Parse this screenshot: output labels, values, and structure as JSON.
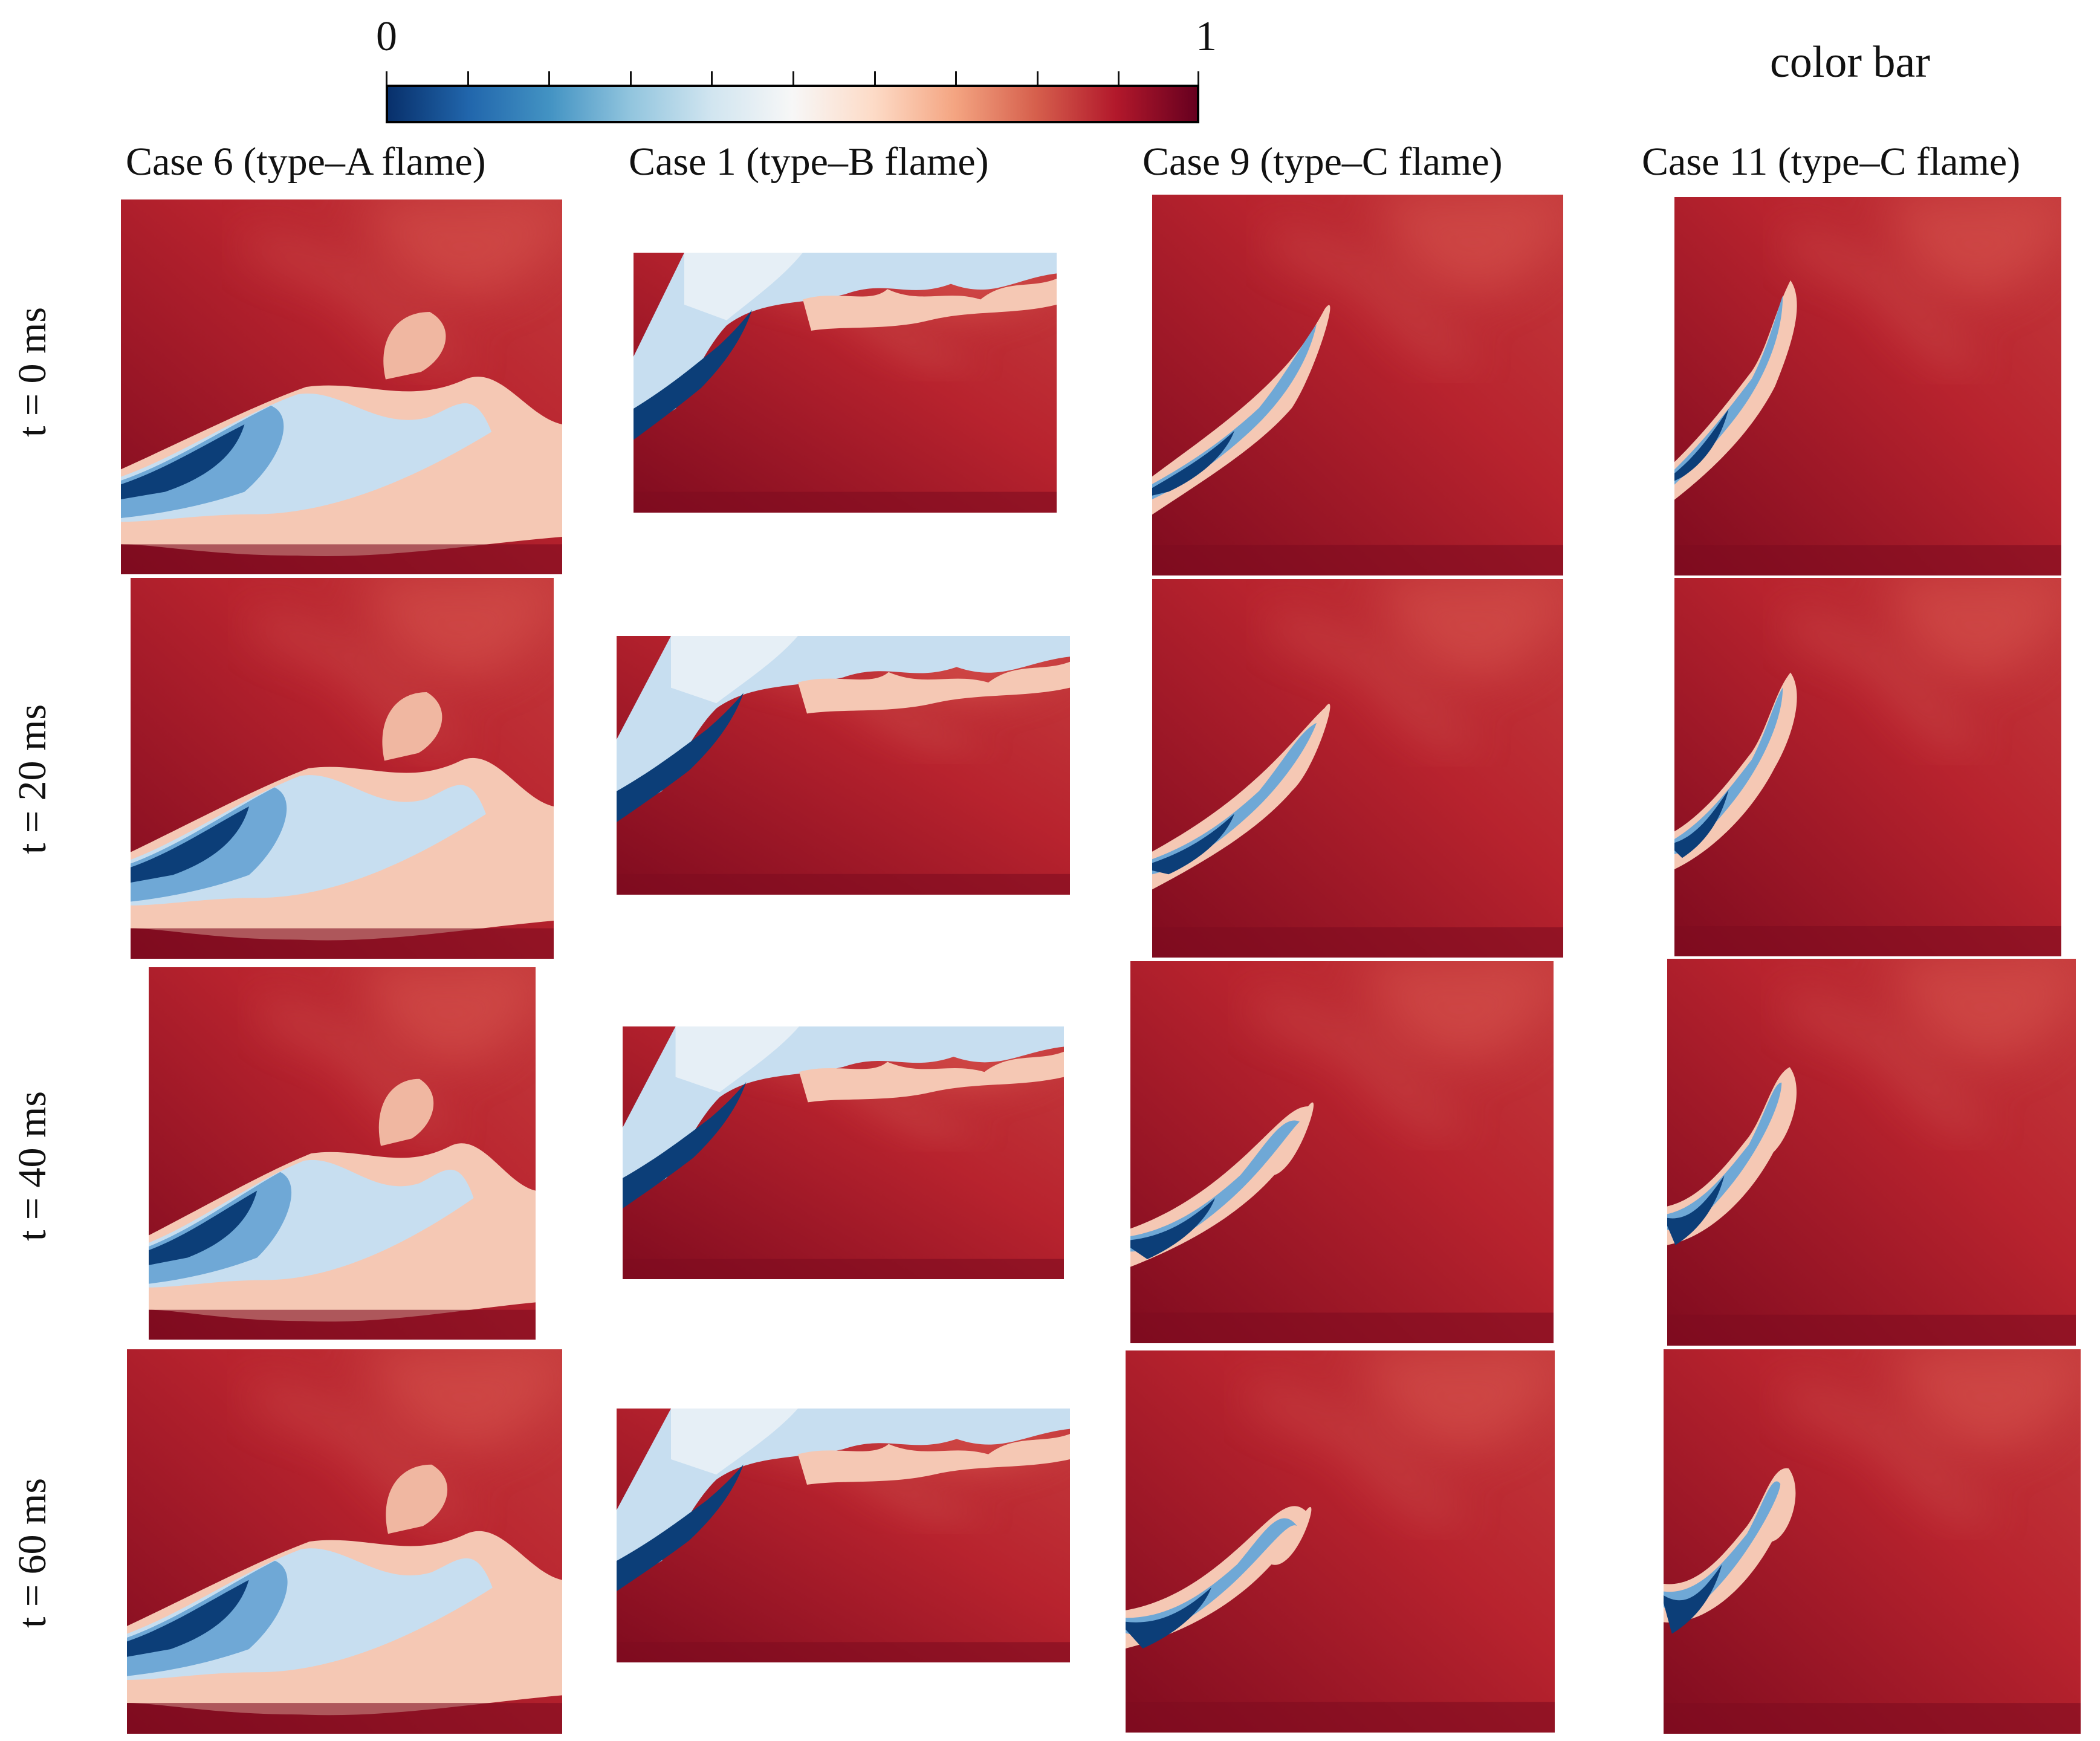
{
  "colorbar": {
    "min_label": "0",
    "max_label": "1",
    "title": "color bar",
    "colors": [
      "#08306b",
      "#2166ac",
      "#4393c3",
      "#92c5de",
      "#d1e5f0",
      "#f7f7f7",
      "#fddbc7",
      "#f4a582",
      "#d6604d",
      "#b2182b",
      "#67001f"
    ]
  },
  "columns": [
    {
      "title": "Case 6 (type–A flame)"
    },
    {
      "title": "Case 1 (type–B flame)"
    },
    {
      "title": "Case 9 (type–C flame)"
    },
    {
      "title": "Case 11 (type–C flame)"
    }
  ],
  "rows": [
    {
      "label": "t = 0 ms"
    },
    {
      "label": "t = 20 ms"
    },
    {
      "label": "t = 40 ms"
    },
    {
      "label": "t = 60 ms"
    }
  ]
}
